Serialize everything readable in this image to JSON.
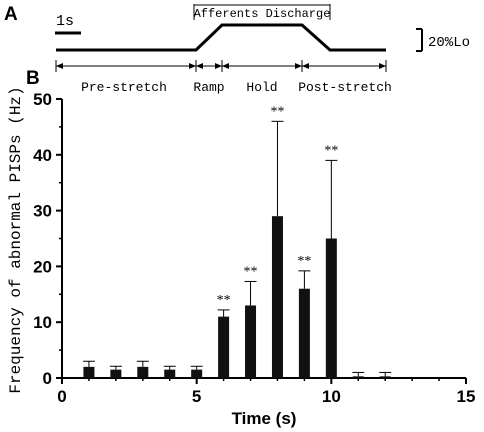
{
  "panel_a": {
    "letter": "A",
    "time_scale_label": "1s",
    "discharge_label": "Afferents Discharge",
    "amplitude_label": "20%Lo",
    "phases": [
      "Pre-stretch",
      "Ramp",
      "Hold",
      "Post-stretch"
    ]
  },
  "panel_b": {
    "letter": "B"
  },
  "chart_data": {
    "type": "bar",
    "xlabel": "Time (s)",
    "ylabel": "Frequency of abnormal PISPs (Hz)",
    "xlim": [
      0,
      15
    ],
    "ylim": [
      0,
      50
    ],
    "xticks": [
      0,
      5,
      10,
      15
    ],
    "yticks": [
      0,
      10,
      20,
      30,
      40,
      50
    ],
    "grid": false,
    "x": [
      1,
      2,
      3,
      4,
      5,
      6,
      7,
      8,
      9,
      10,
      11,
      12
    ],
    "values": [
      2,
      1.5,
      2,
      1.5,
      1.5,
      11,
      13,
      29,
      16,
      25,
      0.3,
      0.3
    ],
    "errors": [
      1,
      0.6,
      1,
      0.6,
      0.6,
      1.2,
      4.3,
      17,
      3.2,
      14,
      0.7,
      0.7
    ],
    "significance": [
      "",
      "",
      "",
      "",
      "",
      "**",
      "**",
      "**",
      "**",
      "**",
      "",
      ""
    ]
  }
}
